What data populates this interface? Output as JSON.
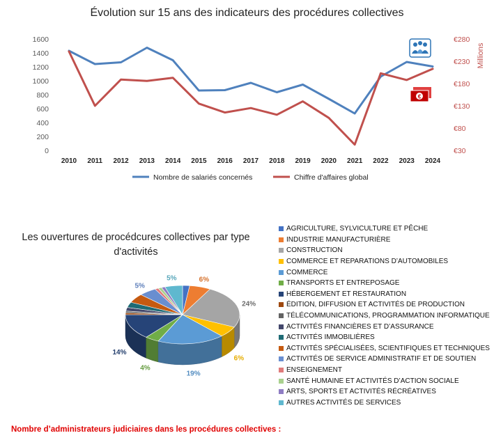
{
  "line_chart_title": "Évolution sur 15 ans des indicateurs des procédures collectives",
  "pie_chart_title": "Les ouvertures de procédcures collectives par type d'activités",
  "footer_text": "Nombre d’administrateurs judiciaires dans les procédures collectives :",
  "icons": {
    "people": "people-group-icon",
    "money": "euro-banknote-icon"
  },
  "chart_data": [
    {
      "type": "line",
      "title": "Évolution sur 15 ans des indicateurs des procédures collectives",
      "x": [
        "2010",
        "2011",
        "2012",
        "2013",
        "2014",
        "2015",
        "2016",
        "2017",
        "2018",
        "2019",
        "2020",
        "2021",
        "2022",
        "2023",
        "2024"
      ],
      "series": [
        {
          "name": "Nombre de salariés concernés",
          "axis": "left",
          "color": "#4f81bd",
          "values": [
            1430,
            1240,
            1265,
            1475,
            1295,
            860,
            865,
            970,
            835,
            945,
            740,
            530,
            1060,
            1270,
            1205
          ]
        },
        {
          "name": "Chiffre d'affaires global",
          "axis": "right",
          "color": "#c0504d",
          "values": [
            252,
            130,
            189,
            186,
            193,
            135,
            115,
            125,
            110,
            140,
            103,
            43,
            203,
            188,
            213
          ]
        }
      ],
      "ylim_left": [
        0,
        1600
      ],
      "yticks_left": [
        "0",
        "200",
        "400",
        "600",
        "800",
        "1000",
        "1200",
        "1400",
        "1600"
      ],
      "ylim_right": [
        30,
        280
      ],
      "yticks_right": [
        "€30",
        "€80",
        "€130",
        "€180",
        "€230",
        "€280"
      ],
      "ylabel_right": "Millions",
      "legend": "bottom",
      "grid": false
    },
    {
      "type": "pie",
      "title": "Les ouvertures de procédcures collectives par type d'activités",
      "legend": "right",
      "slices": [
        {
          "label": "AGRICULTURE, SYLVICULTURE ET PÊCHE",
          "value": 2,
          "color": "#4472c4",
          "data_label": ""
        },
        {
          "label": "INDUSTRIE MANUFACTURIÈRE",
          "value": 6,
          "color": "#ed7d31",
          "data_label": "6%"
        },
        {
          "label": "CONSTRUCTION",
          "value": 24,
          "color": "#a5a5a5",
          "data_label": "24%"
        },
        {
          "label": "COMMERCE ET REPARATIONS D’AUTOMOBILES",
          "value": 6,
          "color": "#ffc000",
          "data_label": "6%"
        },
        {
          "label": "COMMERCE",
          "value": 19,
          "color": "#5b9bd5",
          "data_label": "19%"
        },
        {
          "label": "TRANSPORTS ET ENTREPOSAGE",
          "value": 4,
          "color": "#70ad47",
          "data_label": "4%"
        },
        {
          "label": "HÉBERGEMENT ET RESTAURATION",
          "value": 14,
          "color": "#264478",
          "data_label": "14%"
        },
        {
          "label": "ÉDITION, DIFFUSION ET ACTIVITÉS DE PRODUCTION",
          "value": 1,
          "color": "#9e480e",
          "data_label": ""
        },
        {
          "label": "TÉLÉCOMMUNICATIONS, PROGRAMMATION INFORMATIQUE",
          "value": 1,
          "color": "#636363",
          "data_label": ""
        },
        {
          "label": "ACTIVITÉS FINANCIÈRES ET D’ASSURANCE",
          "value": 2,
          "color": "#43476b",
          "data_label": ""
        },
        {
          "label": "ACTIVITÉS IMMOBILIÈRES",
          "value": 3,
          "color": "#1f6b75",
          "data_label": ""
        },
        {
          "label": "ACTIVITÉS SPÉCIALISÉES, SCIENTIFIQUES ET TECHNIQUES",
          "value": 5,
          "color": "#c55a11",
          "data_label": ""
        },
        {
          "label": "ACTIVITÉS DE SERVICE ADMINISTRATIF ET DE SOUTIEN",
          "value": 5,
          "color": "#698ed0",
          "data_label": "5%"
        },
        {
          "label": "ENSEIGNEMENT",
          "value": 1,
          "color": "#e07b7b",
          "data_label": ""
        },
        {
          "label": "SANTÉ HUMAINE ET ACTIVITÉS D’ACTION SOCIALE",
          "value": 1,
          "color": "#a9d18e",
          "data_label": ""
        },
        {
          "label": "ARTS, SPORTS ET ACTIVITÉS RÉCRÉATIVES",
          "value": 1,
          "color": "#8e7cc3",
          "data_label": ""
        },
        {
          "label": "AUTRES ACTIVITÉS DE SERVICES",
          "value": 5,
          "color": "#5fb8cf",
          "data_label": "5%"
        }
      ]
    }
  ]
}
